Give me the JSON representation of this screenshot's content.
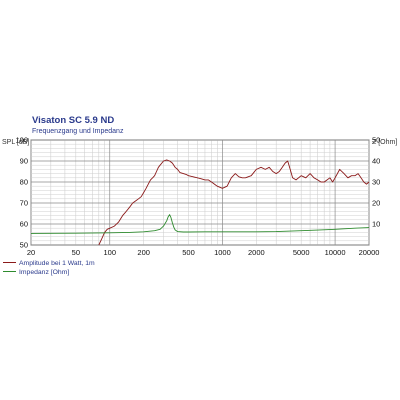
{
  "chart_data": {
    "type": "line",
    "title": "Visaton SC 5.9 ND",
    "subtitle": "Frequenzgang und Impedanz",
    "ylabel_left": "SPL [dB]",
    "ylabel_right": "Z [Ohm]",
    "xscale": "log",
    "xlim": [
      20,
      20000
    ],
    "ylim_left": [
      50,
      100
    ],
    "ylim_right": [
      0,
      50
    ],
    "x_ticks": [
      "20",
      "50",
      "100",
      "200",
      "500",
      "1000",
      "2000",
      "5000",
      "10000",
      "20000"
    ],
    "y_ticks_left": [
      "50",
      "60",
      "70",
      "80",
      "90",
      "100"
    ],
    "y_ticks_right": [
      "10",
      "20",
      "30",
      "40",
      "50"
    ],
    "grid": true,
    "legend_position": "bottom-left",
    "series": [
      {
        "name": "Amplitude bei 1 Watt, 1m",
        "axis": "left",
        "color": "#8b1a1a",
        "x": [
          80,
          85,
          90,
          95,
          100,
          110,
          120,
          130,
          140,
          150,
          160,
          170,
          180,
          190,
          200,
          210,
          220,
          230,
          240,
          250,
          260,
          270,
          280,
          290,
          300,
          320,
          340,
          360,
          380,
          400,
          420,
          450,
          480,
          500,
          550,
          600,
          650,
          700,
          750,
          800,
          900,
          1000,
          1100,
          1200,
          1300,
          1400,
          1500,
          1600,
          1800,
          2000,
          2200,
          2400,
          2600,
          2800,
          3000,
          3200,
          3400,
          3600,
          3800,
          4000,
          4200,
          4500,
          5000,
          5500,
          6000,
          6500,
          7000,
          7500,
          8000,
          8500,
          9000,
          9500,
          10000,
          11000,
          12000,
          13000,
          14000,
          15000,
          16000,
          17000,
          18000,
          19000,
          20000
        ],
        "y": [
          50,
          53,
          56,
          57.5,
          58,
          59,
          61,
          64,
          66,
          68,
          70,
          71,
          72,
          73,
          75,
          77,
          79,
          81,
          82,
          83,
          85,
          87,
          88,
          89,
          90,
          90.5,
          90,
          89,
          87,
          86,
          84.5,
          84,
          83.5,
          83,
          82.5,
          82,
          81.5,
          81,
          81,
          80,
          78,
          77,
          78,
          82,
          84,
          82.5,
          82,
          82,
          83,
          86,
          87,
          86,
          87,
          85,
          84,
          85,
          87,
          89,
          90,
          86,
          82,
          81,
          83,
          82,
          84,
          82,
          81,
          80,
          80,
          81,
          82,
          80,
          82,
          86,
          84,
          82,
          83,
          83,
          84,
          82,
          80,
          79,
          80
        ]
      },
      {
        "name": "Impedanz [Ohm]",
        "axis": "right",
        "color": "#2e8b2e",
        "x": [
          20,
          50,
          100,
          150,
          200,
          250,
          280,
          300,
          320,
          330,
          340,
          350,
          360,
          370,
          380,
          400,
          450,
          500,
          700,
          1000,
          2000,
          3000,
          5000,
          7000,
          10000,
          15000,
          20000
        ],
        "y": [
          5.5,
          5.6,
          5.8,
          6.0,
          6.3,
          6.8,
          7.5,
          9.0,
          11.5,
          13.5,
          14.5,
          13.0,
          10.5,
          8.5,
          7.2,
          6.4,
          6.2,
          6.2,
          6.3,
          6.3,
          6.3,
          6.4,
          6.8,
          7.1,
          7.5,
          8.0,
          8.3
        ]
      }
    ]
  }
}
